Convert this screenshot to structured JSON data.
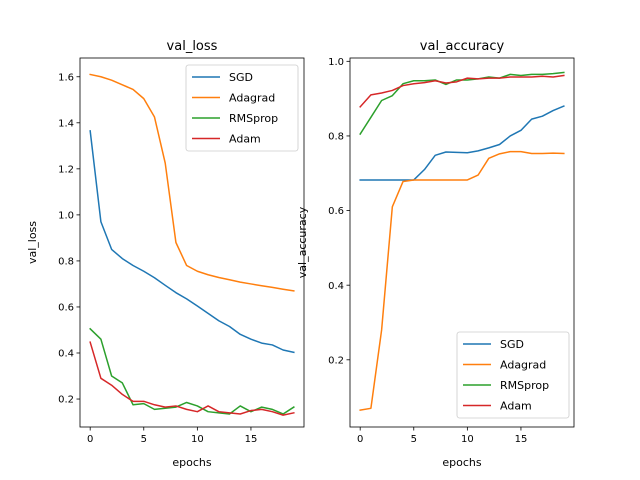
{
  "chart_data": [
    {
      "type": "line",
      "title": "val_loss",
      "xlabel": "epochs",
      "ylabel": "val_loss",
      "xlim": [
        -0.95,
        19.95
      ],
      "ylim": [
        0.0785,
        1.6815
      ],
      "xticks": [
        0,
        5,
        10,
        15
      ],
      "yticks": [
        0.2,
        0.4,
        0.6,
        0.8,
        1.0,
        1.2,
        1.4,
        1.6
      ],
      "ytick_labels": [
        "0.2",
        "0.4",
        "0.6",
        "0.8",
        "1.0",
        "1.2",
        "1.4",
        "1.6"
      ],
      "grid": false,
      "legend_position": "top-right",
      "x": [
        0,
        1,
        2,
        3,
        4,
        5,
        6,
        7,
        8,
        9,
        10,
        11,
        12,
        13,
        14,
        15,
        16,
        17,
        18,
        19
      ],
      "series": [
        {
          "name": "SGD",
          "color": "#1f77b4",
          "values": [
            1.365,
            0.97,
            0.85,
            0.81,
            0.78,
            0.755,
            0.727,
            0.694,
            0.662,
            0.635,
            0.604,
            0.572,
            0.54,
            0.515,
            0.481,
            0.46,
            0.443,
            0.435,
            0.413,
            0.403
          ]
        },
        {
          "name": "Adagrad",
          "color": "#ff7f0e",
          "values": [
            1.61,
            1.6,
            1.585,
            1.565,
            1.545,
            1.505,
            1.425,
            1.225,
            0.88,
            0.78,
            0.755,
            0.74,
            0.728,
            0.718,
            0.708,
            0.7,
            0.692,
            0.685,
            0.677,
            0.67
          ]
        },
        {
          "name": "RMSprop",
          "color": "#2ca02c",
          "values": [
            0.505,
            0.46,
            0.3,
            0.27,
            0.175,
            0.18,
            0.155,
            0.16,
            0.165,
            0.185,
            0.17,
            0.145,
            0.14,
            0.135,
            0.17,
            0.145,
            0.165,
            0.155,
            0.135,
            0.165
          ]
        },
        {
          "name": "Adam",
          "color": "#d62728",
          "values": [
            0.447,
            0.29,
            0.26,
            0.22,
            0.19,
            0.19,
            0.175,
            0.165,
            0.17,
            0.155,
            0.145,
            0.17,
            0.145,
            0.14,
            0.135,
            0.15,
            0.155,
            0.145,
            0.13,
            0.14
          ]
        }
      ]
    },
    {
      "type": "line",
      "title": "val_accuracy",
      "xlabel": "epochs",
      "ylabel": "val_accuracy",
      "xlim": [
        -0.95,
        19.95
      ],
      "ylim": [
        0.0199,
        1.0089
      ],
      "xticks": [
        0,
        5,
        10,
        15
      ],
      "yticks": [
        0.2,
        0.4,
        0.6,
        0.8,
        1.0
      ],
      "ytick_labels": [
        "0.2",
        "0.4",
        "0.6",
        "0.8",
        "1.0"
      ],
      "grid": false,
      "legend_position": "bottom-right",
      "x": [
        0,
        1,
        2,
        3,
        4,
        5,
        6,
        7,
        8,
        9,
        10,
        11,
        12,
        13,
        14,
        15,
        16,
        17,
        18,
        19
      ],
      "series": [
        {
          "name": "SGD",
          "color": "#1f77b4",
          "values": [
            0.682,
            0.682,
            0.682,
            0.682,
            0.682,
            0.682,
            0.71,
            0.748,
            0.757,
            0.756,
            0.755,
            0.76,
            0.768,
            0.777,
            0.8,
            0.815,
            0.845,
            0.853,
            0.868,
            0.88
          ]
        },
        {
          "name": "Adagrad",
          "color": "#ff7f0e",
          "values": [
            0.065,
            0.07,
            0.28,
            0.61,
            0.678,
            0.682,
            0.682,
            0.682,
            0.682,
            0.682,
            0.682,
            0.695,
            0.74,
            0.752,
            0.758,
            0.758,
            0.753,
            0.753,
            0.754,
            0.753
          ]
        },
        {
          "name": "RMSprop",
          "color": "#2ca02c",
          "values": [
            0.805,
            0.85,
            0.895,
            0.908,
            0.94,
            0.948,
            0.948,
            0.95,
            0.938,
            0.95,
            0.95,
            0.953,
            0.958,
            0.955,
            0.965,
            0.962,
            0.965,
            0.965,
            0.967,
            0.97
          ]
        },
        {
          "name": "Adam",
          "color": "#d62728",
          "values": [
            0.878,
            0.91,
            0.915,
            0.922,
            0.935,
            0.94,
            0.943,
            0.948,
            0.942,
            0.945,
            0.955,
            0.953,
            0.955,
            0.955,
            0.958,
            0.958,
            0.958,
            0.96,
            0.958,
            0.962
          ]
        }
      ]
    }
  ]
}
